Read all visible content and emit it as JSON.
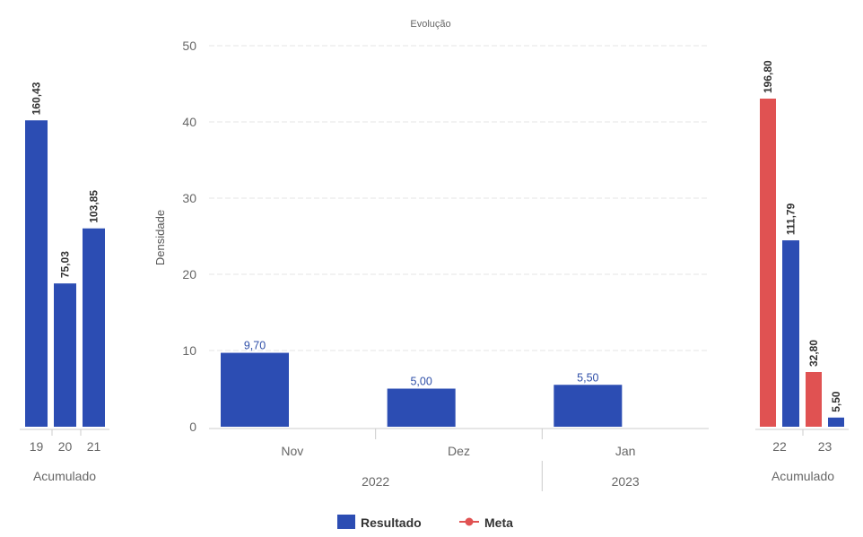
{
  "colors": {
    "resultado": "#2c4db3",
    "meta": "#e05252",
    "grid": "#e4e4e4",
    "axis": "#cccccc"
  },
  "legend": {
    "resultado": "Resultado",
    "meta": "Meta"
  },
  "chart_data": [
    {
      "type": "bar",
      "title": "",
      "categories": [
        "19",
        "20",
        "21"
      ],
      "group_label": "Acumulado",
      "series": [
        {
          "name": "Resultado",
          "values": [
            160.43,
            75.03,
            103.85
          ],
          "labels": [
            "160,43",
            "75,03",
            "103,85"
          ]
        }
      ],
      "ylim": [
        0,
        210
      ]
    },
    {
      "type": "bar",
      "title": "Evolução",
      "ylabel": "Densidade",
      "categories": [
        "Nov",
        "Dez",
        "Jan"
      ],
      "year_groups": [
        {
          "label": "2022",
          "span": [
            "Nov",
            "Dez"
          ]
        },
        {
          "label": "2023",
          "span": [
            "Jan"
          ]
        }
      ],
      "yticks": [
        0,
        10,
        20,
        30,
        40,
        50
      ],
      "ylim": [
        0,
        50
      ],
      "grid": true,
      "legend_position": "bottom",
      "series": [
        {
          "name": "Resultado",
          "values": [
            9.7,
            5.0,
            5.5
          ],
          "labels": [
            "9,70",
            "5,00",
            "5,50"
          ]
        },
        {
          "name": "Meta",
          "values": [
            null,
            null,
            null
          ]
        }
      ]
    },
    {
      "type": "bar",
      "title": "",
      "categories": [
        "22",
        "23"
      ],
      "group_label": "Acumulado",
      "series": [
        {
          "name": "Meta",
          "values": [
            196.8,
            32.8
          ],
          "labels": [
            "196,80",
            "32,80"
          ]
        },
        {
          "name": "Resultado",
          "values": [
            111.79,
            5.5
          ],
          "labels": [
            "111,79",
            "5,50"
          ]
        }
      ],
      "ylim": [
        0,
        210
      ]
    }
  ]
}
